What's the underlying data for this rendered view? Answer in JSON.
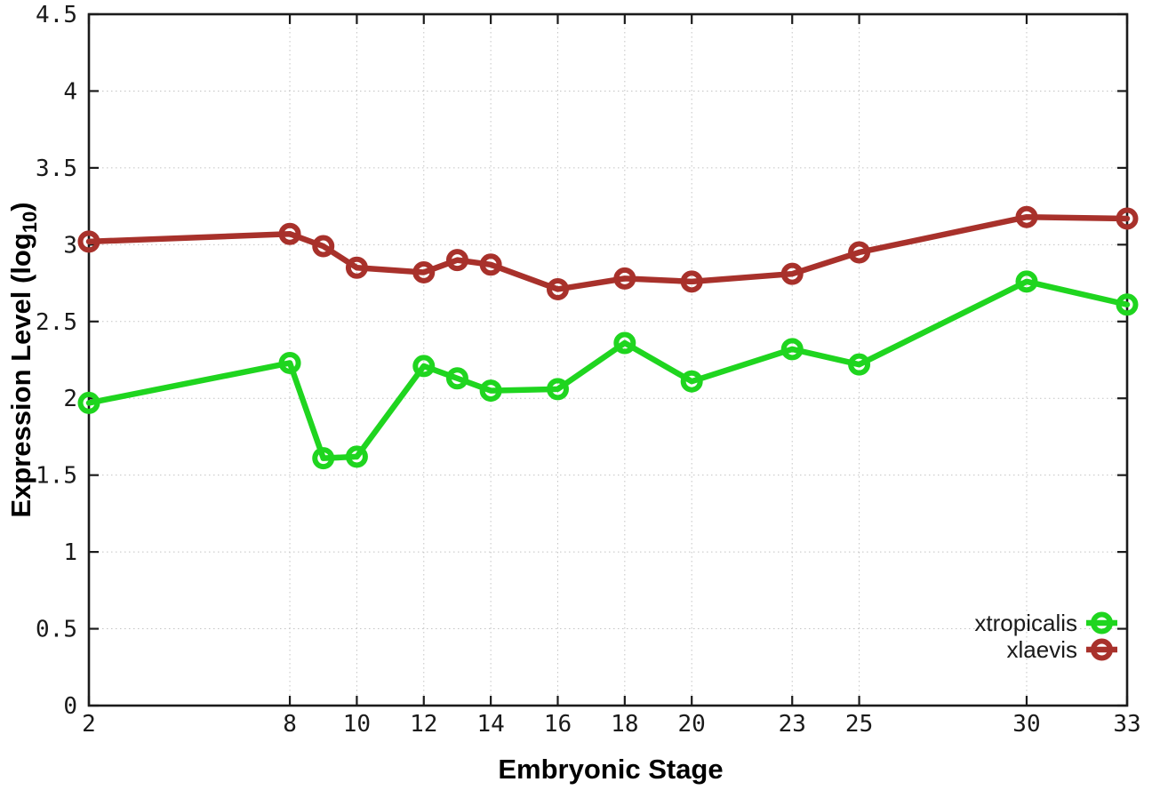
{
  "chart_data": {
    "type": "line",
    "title": "",
    "xlabel": "Embryonic Stage",
    "ylabel": "Expression Level (log10)",
    "ylabel_parts": {
      "main": "Expression Level (log",
      "sub": "10",
      "end": ")"
    },
    "xlim": [
      2,
      33
    ],
    "ylim": [
      0,
      4.5
    ],
    "x_ticks": [
      2,
      8,
      10,
      12,
      14,
      16,
      18,
      20,
      23,
      25,
      30,
      33
    ],
    "x_tick_labels": [
      "2",
      "8",
      "10",
      "12",
      "14",
      "16",
      "18",
      "20",
      "23",
      "25",
      "30",
      "33"
    ],
    "y_ticks": [
      0,
      0.5,
      1,
      1.5,
      2,
      2.5,
      3,
      3.5,
      4,
      4.5
    ],
    "y_tick_labels": [
      "0",
      "0.5",
      "1",
      "1.5",
      "2",
      "2.5",
      "3",
      "3.5",
      "4",
      "4.5"
    ],
    "grid": true,
    "legend_position": "bottom-right-inside",
    "x": [
      2,
      8,
      9,
      10,
      12,
      13,
      14,
      16,
      18,
      20,
      23,
      25,
      30,
      33
    ],
    "series": [
      {
        "name": "xtropicalis",
        "color": "#1fd51f",
        "values": [
          1.97,
          2.23,
          1.61,
          1.62,
          2.21,
          2.13,
          2.05,
          2.06,
          2.36,
          2.11,
          2.32,
          2.22,
          2.76,
          2.61
        ]
      },
      {
        "name": "xlaevis",
        "color": "#a8312b",
        "values": [
          3.02,
          3.07,
          2.99,
          2.85,
          2.82,
          2.9,
          2.87,
          2.71,
          2.78,
          2.76,
          2.81,
          2.95,
          3.18,
          3.17
        ]
      }
    ],
    "colors": {
      "axis": "#1b1b1b",
      "grid": "#c3c3c3",
      "text": "#1a1a1a"
    }
  }
}
